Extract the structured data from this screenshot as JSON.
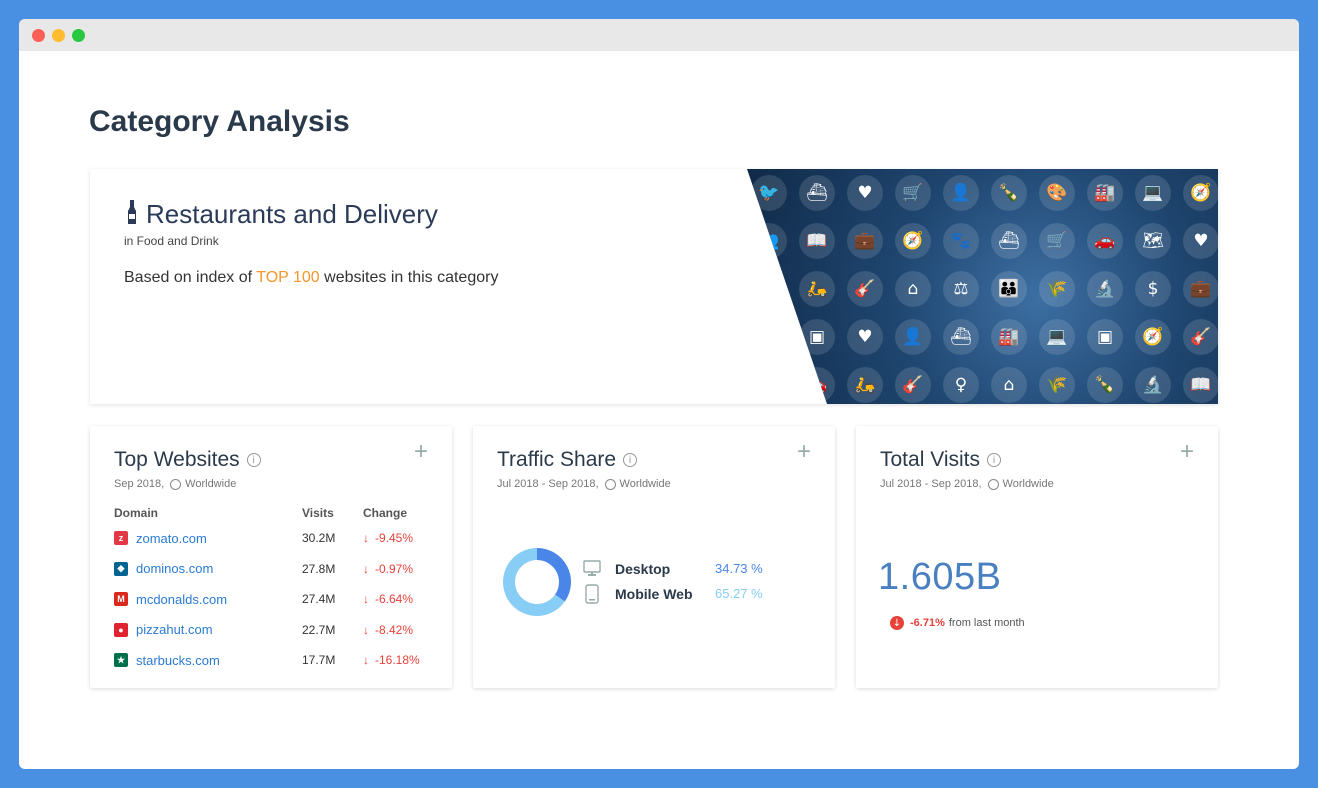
{
  "page": {
    "title": "Category Analysis"
  },
  "category": {
    "title": "Restaurants and Delivery",
    "parent": "in Food and Drink",
    "index_prefix": "Based on index of ",
    "index_highlight": "TOP 100",
    "index_suffix": " websites in this category",
    "icon": "wine-bottle-icon"
  },
  "pattern_icons": [
    [
      "twitter-icon",
      "ship-icon",
      "heart-icon",
      "cart-icon",
      "user-lock-icon",
      "bottle-icon",
      "palette-icon",
      "factory-icon",
      "laptop-icon",
      "compass-icon"
    ],
    [
      "people-icon",
      "book-icon",
      "briefcase-icon",
      "compass-icon",
      "paw-icon",
      "ship-icon",
      "cart-icon",
      "car-icon",
      "map-icon",
      "heart-icon"
    ],
    [
      "scooter-icon",
      "guitar-icon",
      "home-icon",
      "scales-icon",
      "group-icon",
      "wheat-icon",
      "microscope-icon",
      "coins-icon",
      "briefcase-icon"
    ],
    [
      "wallet-icon",
      "heart-icon",
      "user-lock-icon",
      "ship-icon",
      "factory-icon",
      "laptop-icon",
      "wallet-icon",
      "compass-icon",
      "guitar-icon"
    ],
    [
      "car-icon",
      "scooter-icon",
      "guitar-icon",
      "person-icon",
      "home-icon",
      "wheat-icon",
      "bottle-icon",
      "microscope-icon",
      "book-icon"
    ]
  ],
  "top_websites": {
    "title": "Top Websites",
    "period": "Sep 2018,",
    "region": "Worldwide",
    "columns": {
      "domain": "Domain",
      "visits": "Visits",
      "change": "Change"
    },
    "rows": [
      {
        "domain": "zomato.com",
        "visits": "30.2M",
        "change": "-9.45%",
        "color": "#e23744",
        "glyph": "z"
      },
      {
        "domain": "dominos.com",
        "visits": "27.8M",
        "change": "-0.97%",
        "color": "#006491",
        "glyph": "◆"
      },
      {
        "domain": "mcdonalds.com",
        "visits": "27.4M",
        "change": "-6.64%",
        "color": "#da291c",
        "glyph": "M"
      },
      {
        "domain": "pizzahut.com",
        "visits": "22.7M",
        "change": "-8.42%",
        "color": "#e0232e",
        "glyph": "●"
      },
      {
        "domain": "starbucks.com",
        "visits": "17.7M",
        "change": "-16.18%",
        "color": "#00704a",
        "glyph": "★"
      }
    ]
  },
  "traffic_share": {
    "title": "Traffic Share",
    "period": "Jul 2018 - Sep 2018,",
    "region": "Worldwide",
    "items": [
      {
        "label": "Desktop",
        "value": "34.73 %",
        "share": 34.73,
        "color": "#4a86e8"
      },
      {
        "label": "Mobile Web",
        "value": "65.27 %",
        "share": 65.27,
        "color": "#87cdf5"
      }
    ]
  },
  "total_visits": {
    "title": "Total Visits",
    "period": "Jul 2018 - Sep 2018,",
    "region": "Worldwide",
    "value": "1.605B",
    "change": "-6.71%",
    "change_suffix": "from last month"
  }
}
